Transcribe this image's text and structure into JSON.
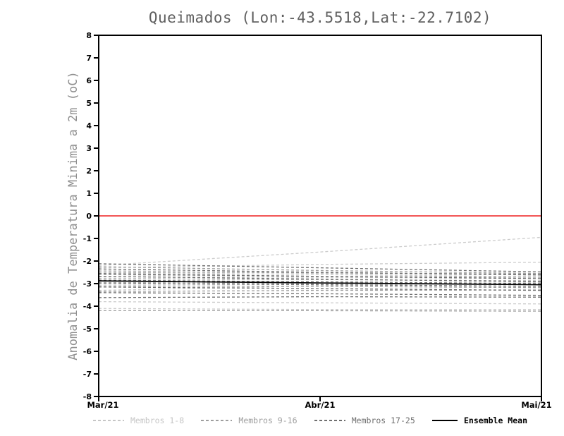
{
  "chart_data": {
    "type": "line",
    "title": "Queimados (Lon:-43.5518,Lat:-22.7102)",
    "ylabel": "Anomalia de Temperatura Minima a 2m (oC)",
    "xlabel": "",
    "x_tick_labels": [
      "Mar/21",
      "Abr/21",
      "Mai/21"
    ],
    "ylim": [
      -8,
      8
    ],
    "y_ticks": [
      8,
      7,
      6,
      5,
      4,
      3,
      2,
      1,
      0,
      -1,
      -2,
      -3,
      -4,
      -5,
      -6,
      -7,
      -8
    ],
    "grid": "off",
    "zero_line": {
      "value": 0,
      "color": "#f25555"
    },
    "groups": [
      {
        "name": "Membros 1-8",
        "color": "#cccccc",
        "style": "dashed"
      },
      {
        "name": "Membros 9-16",
        "color": "#9e9e9e",
        "style": "dashed"
      },
      {
        "name": "Membros 17-25",
        "color": "#6f6f6f",
        "style": "dashed"
      }
    ],
    "series": [
      {
        "name": "Membro 1",
        "group": 0,
        "values": [
          -2.2,
          -1.6,
          -0.95
        ]
      },
      {
        "name": "Membro 2",
        "group": 0,
        "values": [
          -2.3,
          -2.15,
          -2.05
        ]
      },
      {
        "name": "Membro 3",
        "group": 0,
        "values": [
          -2.5,
          -2.6,
          -2.7
        ]
      },
      {
        "name": "Membro 4",
        "group": 0,
        "values": [
          -3.3,
          -3.1,
          -2.95
        ]
      },
      {
        "name": "Membro 5",
        "group": 0,
        "values": [
          -3.8,
          -3.85,
          -3.9
        ]
      },
      {
        "name": "Membro 6",
        "group": 0,
        "values": [
          -4.1,
          -4.15,
          -4.15
        ]
      },
      {
        "name": "Membro 7",
        "group": 0,
        "values": [
          -2.7,
          -2.72,
          -2.78
        ]
      },
      {
        "name": "Membro 8",
        "group": 0,
        "values": [
          -2.42,
          -2.55,
          -2.62
        ]
      },
      {
        "name": "Membro 9",
        "group": 1,
        "values": [
          -2.25,
          -2.42,
          -2.55
        ]
      },
      {
        "name": "Membro 10",
        "group": 1,
        "values": [
          -2.48,
          -2.52,
          -2.58
        ]
      },
      {
        "name": "Membro 11",
        "group": 1,
        "values": [
          -2.6,
          -2.68,
          -2.72
        ]
      },
      {
        "name": "Membro 12",
        "group": 1,
        "values": [
          -2.78,
          -2.82,
          -2.88
        ]
      },
      {
        "name": "Membro 13",
        "group": 1,
        "values": [
          -2.95,
          -3.0,
          -3.02
        ]
      },
      {
        "name": "Membro 14",
        "group": 1,
        "values": [
          -3.1,
          -3.12,
          -3.18
        ]
      },
      {
        "name": "Membro 15",
        "group": 1,
        "values": [
          -3.35,
          -3.3,
          -3.28
        ]
      },
      {
        "name": "Membro 16",
        "group": 1,
        "values": [
          -4.2,
          -4.2,
          -4.22
        ]
      },
      {
        "name": "Membro 17",
        "group": 2,
        "values": [
          -2.35,
          -2.5,
          -2.62
        ]
      },
      {
        "name": "Membro 18",
        "group": 2,
        "values": [
          -2.55,
          -2.68,
          -2.78
        ]
      },
      {
        "name": "Membro 19",
        "group": 2,
        "values": [
          -2.68,
          -2.8,
          -2.92
        ]
      },
      {
        "name": "Membro 20",
        "group": 2,
        "values": [
          -2.85,
          -2.92,
          -3.0
        ]
      },
      {
        "name": "Membro 21",
        "group": 2,
        "values": [
          -3.0,
          -3.05,
          -3.12
        ]
      },
      {
        "name": "Membro 22",
        "group": 2,
        "values": [
          -3.15,
          -3.22,
          -3.3
        ]
      },
      {
        "name": "Membro 23",
        "group": 2,
        "values": [
          -3.4,
          -3.45,
          -3.52
        ]
      },
      {
        "name": "Membro 24",
        "group": 2,
        "values": [
          -3.62,
          -3.58,
          -3.6
        ]
      },
      {
        "name": "Membro 25",
        "group": 2,
        "values": [
          -2.12,
          -2.3,
          -2.48
        ]
      }
    ],
    "ensemble_mean": {
      "name": "Ensemble Mean",
      "color": "#000000",
      "style": "solid",
      "values": [
        -2.88,
        -2.97,
        -3.05
      ]
    },
    "legend": [
      {
        "label": "Membros 1-8",
        "color": "#c6c6c6",
        "style": "dashed"
      },
      {
        "label": "Membros 9-16",
        "color": "#9e9e9e",
        "style": "dashed"
      },
      {
        "label": "Membros 17-25",
        "color": "#6f6f6f",
        "style": "dashed"
      },
      {
        "label": "Ensemble Mean",
        "color": "#000000",
        "style": "solid"
      }
    ],
    "legend_position": "bottom"
  }
}
